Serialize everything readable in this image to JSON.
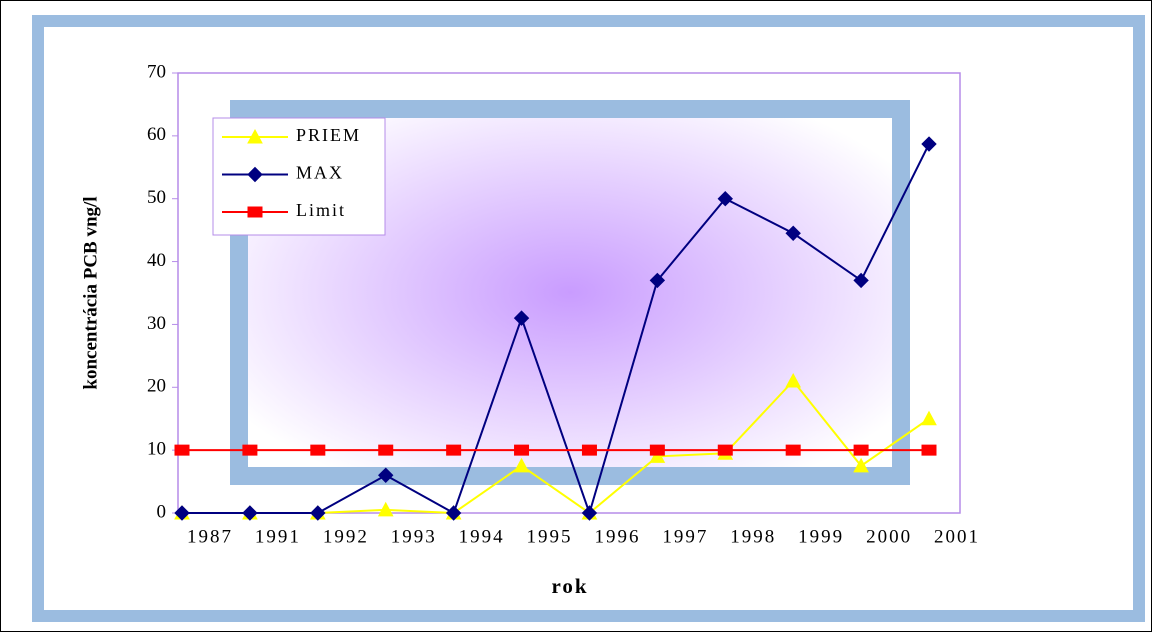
{
  "chart_data": {
    "type": "line",
    "x_label": "rok",
    "y_label": "koncentrácia PCB vng/l",
    "categories": [
      "1987",
      "1991",
      "1992",
      "1993",
      "1994",
      "1995",
      "1996",
      "1997",
      "1998",
      "1999",
      "2000",
      "2001"
    ],
    "series": [
      {
        "name": "PRIEM",
        "color": "#ffff00",
        "marker": "triangle",
        "values": [
          0,
          0,
          0,
          0.5,
          0,
          7.5,
          0,
          9,
          9.5,
          21,
          7.5,
          15
        ]
      },
      {
        "name": "MAX",
        "color": "#000080",
        "marker": "diamond",
        "values": [
          0,
          0,
          0,
          6,
          0,
          31,
          0,
          37,
          50,
          44.5,
          37,
          58.7
        ]
      },
      {
        "name": "Limit",
        "color": "#ff0000",
        "marker": "square",
        "values": [
          10,
          10,
          10,
          10,
          10,
          10,
          10,
          10,
          10,
          10,
          10,
          10
        ]
      }
    ],
    "ylim": [
      0,
      70
    ],
    "yticks": [
      0,
      10,
      20,
      30,
      40,
      50,
      60,
      70
    ],
    "grid": false,
    "legend": "upper left"
  }
}
